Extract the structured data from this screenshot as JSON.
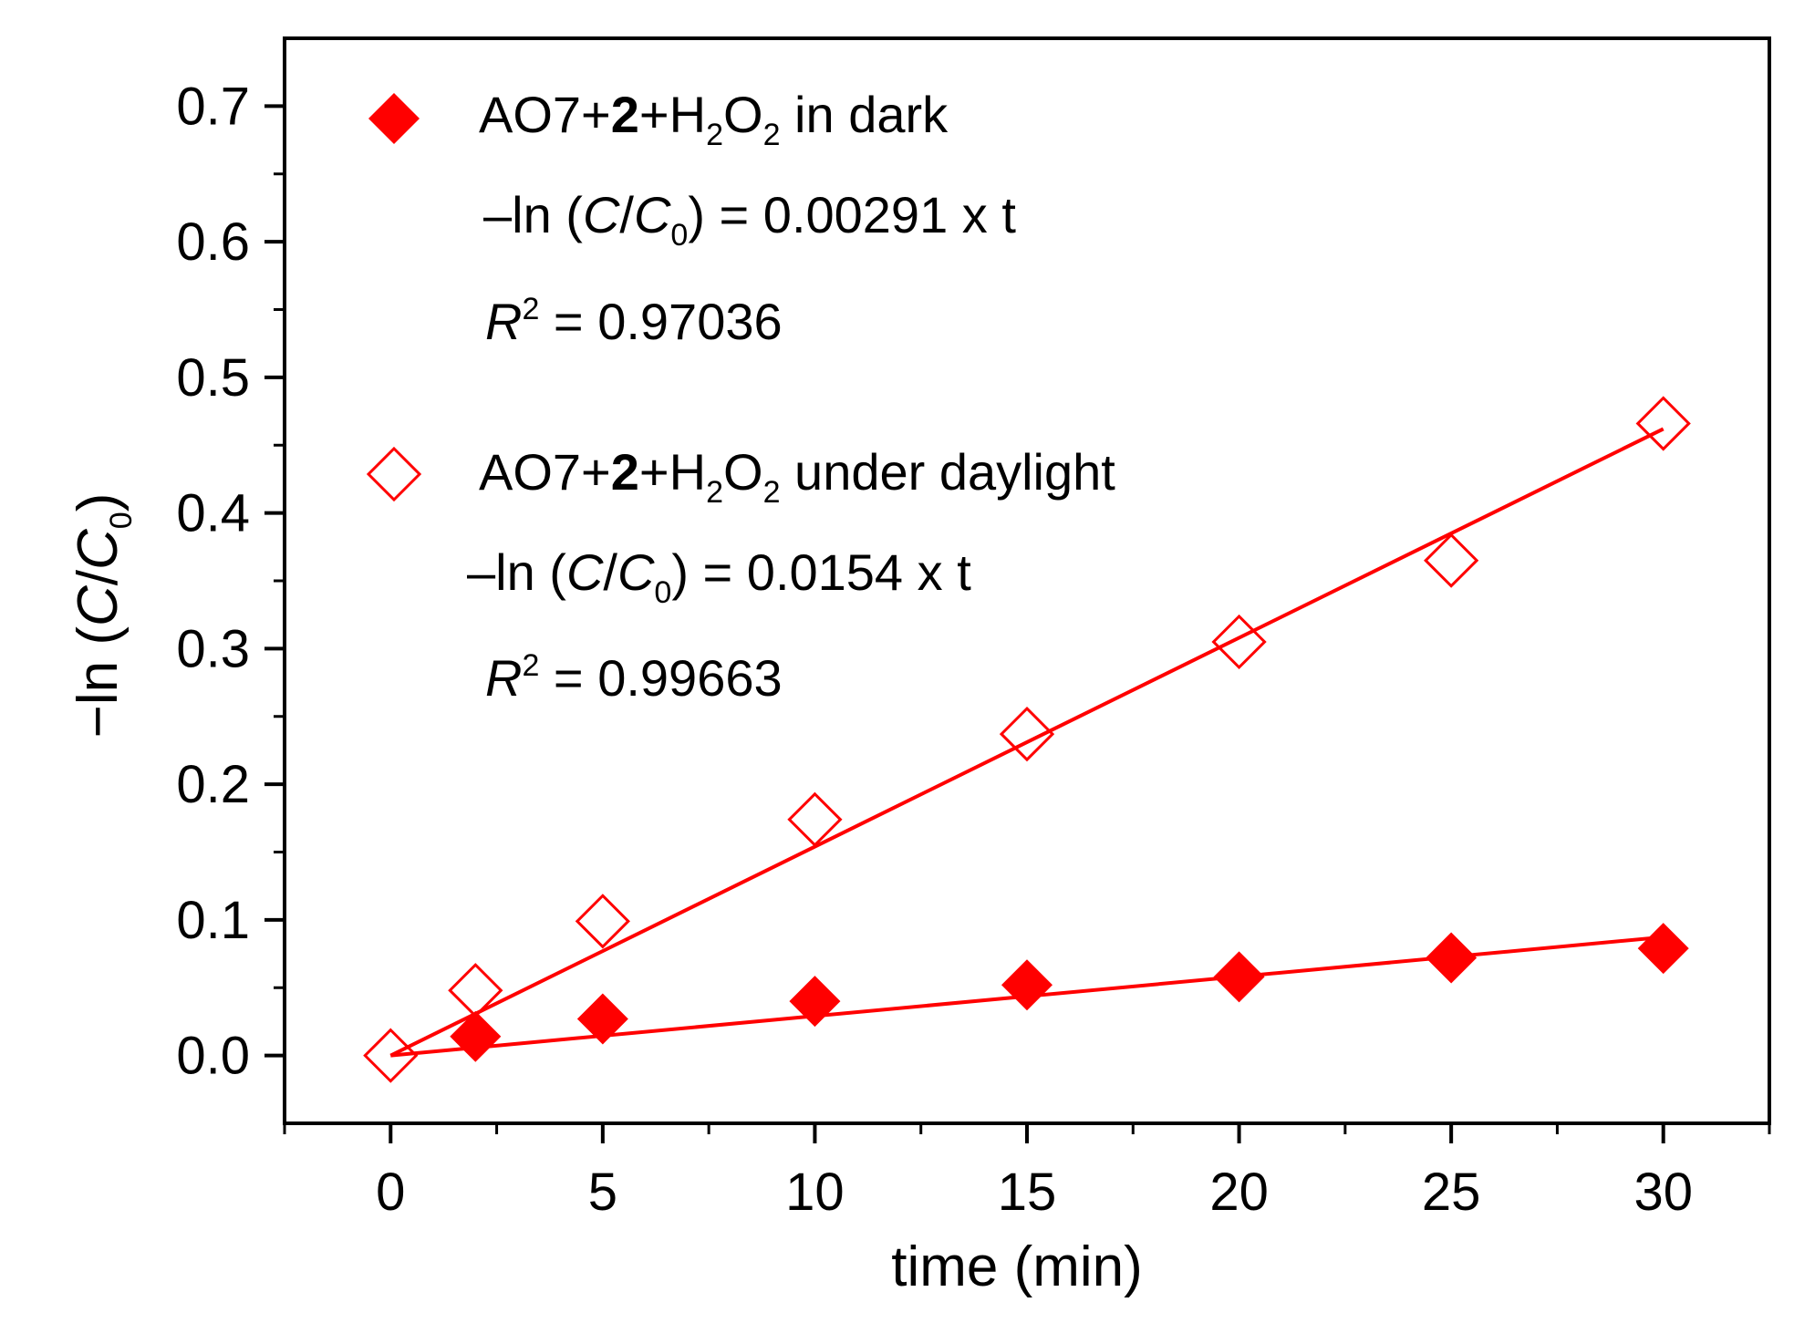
{
  "chart_data": {
    "type": "scatter",
    "xlabel": "time (min)",
    "ylabel": "−ln (C/C0)",
    "ylabel_parts": {
      "prefix": "−ln (",
      "c": "C",
      "slash": "/",
      "c0": "C",
      "sub0": "0",
      "suffix": ")"
    },
    "xlim": [
      -2.5,
      32.5
    ],
    "ylim": [
      -0.05,
      0.75
    ],
    "x_ticks": [
      0,
      5,
      10,
      15,
      20,
      25,
      30
    ],
    "x_tick_labels": [
      "0",
      "5",
      "10",
      "15",
      "20",
      "25",
      "30"
    ],
    "y_ticks": [
      0.0,
      0.1,
      0.2,
      0.3,
      0.4,
      0.5,
      0.6,
      0.7
    ],
    "y_tick_labels": [
      "0.0",
      "0.1",
      "0.2",
      "0.3",
      "0.4",
      "0.5",
      "0.6",
      "0.7"
    ],
    "grid": false,
    "legend_position": "top-left",
    "color": "#ff0000",
    "series": [
      {
        "name": "AO7+2+H2O2 in dark",
        "marker": "filled-diamond",
        "x": [
          2,
          5,
          10,
          15,
          20,
          25,
          30
        ],
        "y": [
          0.014,
          0.027,
          0.04,
          0.052,
          0.058,
          0.072,
          0.079
        ],
        "fit": {
          "slope": 0.00291,
          "x_range": [
            0,
            30
          ]
        },
        "legend": {
          "part1": "AO7+",
          "bold": "2",
          "part2": "+H",
          "sub1": "2",
          "part3": "O",
          "sub2": "2",
          "part4": " in dark",
          "eq_prefix": "–ln (",
          "eq_c": "C",
          "eq_slash": "/",
          "eq_c0": "C",
          "eq_sub0": "0",
          "eq_suffix": ") = 0.00291 x t",
          "r_symbol": "R",
          "r_sup": "2",
          "r_value": " = 0.97036"
        }
      },
      {
        "name": "AO7+2+H2O2 under daylight",
        "marker": "open-diamond",
        "x": [
          0,
          2,
          5,
          10,
          15,
          20,
          25,
          30
        ],
        "y": [
          0.0,
          0.048,
          0.099,
          0.174,
          0.237,
          0.305,
          0.365,
          0.466
        ],
        "fit": {
          "slope": 0.0154,
          "x_range": [
            0,
            30
          ]
        },
        "legend": {
          "part1": "AO7+",
          "bold": "2",
          "part2": "+H",
          "sub1": "2",
          "part3": "O",
          "sub2": "2",
          "part4": " under daylight",
          "eq_prefix": "–ln (",
          "eq_c": "C",
          "eq_slash": "/",
          "eq_c0": "C",
          "eq_sub0": "0",
          "eq_suffix": ") = 0.0154 x t",
          "r_symbol": "R",
          "r_sup": "2",
          "r_value": " = 0.99663"
        }
      }
    ]
  }
}
